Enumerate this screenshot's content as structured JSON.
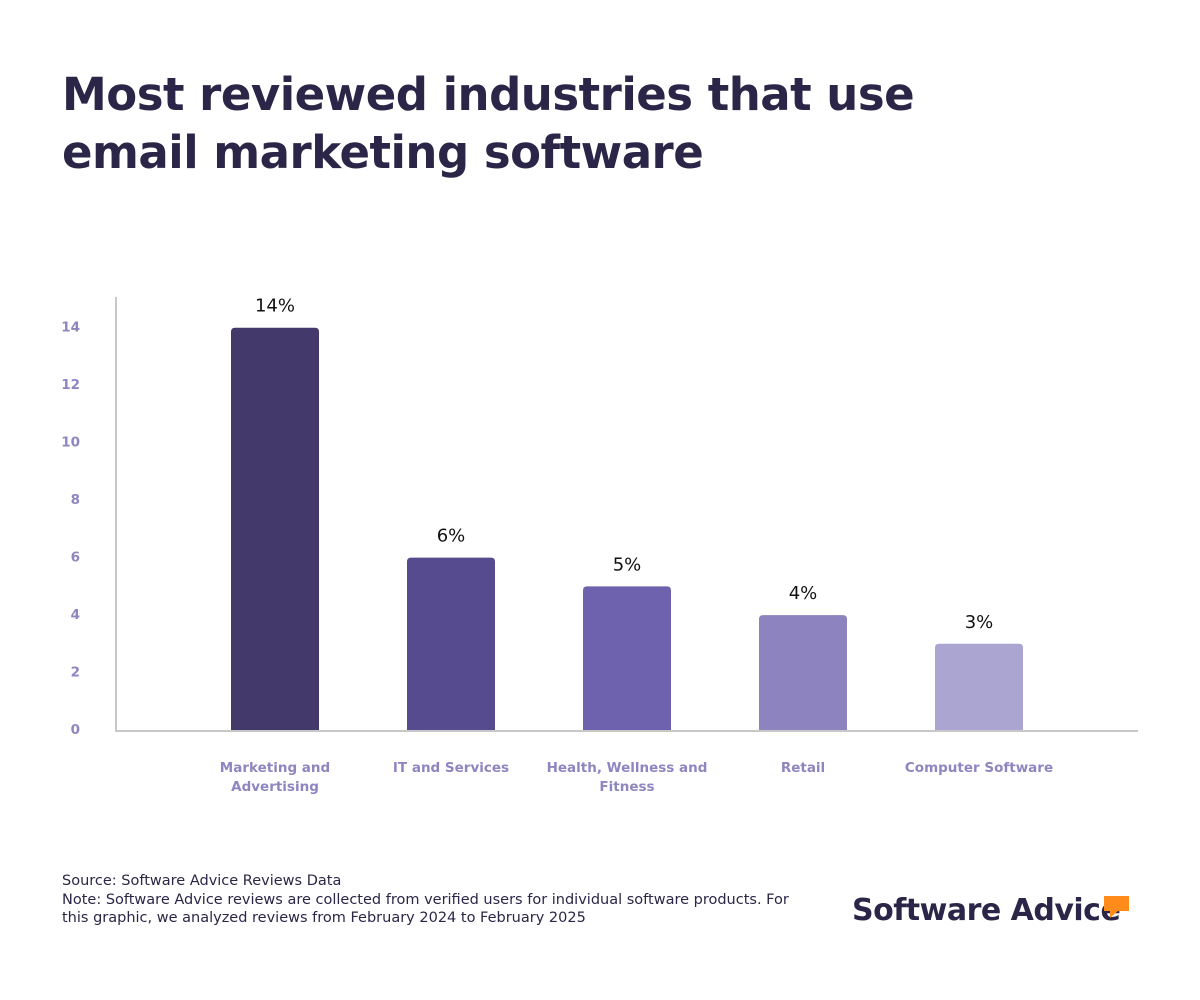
{
  "chart_data": {
    "type": "bar",
    "title": "Most reviewed industries that use email marketing software",
    "categories": [
      "Marketing and Advertising",
      "IT and Services",
      "Health, Wellness and Fitness",
      "Retail",
      "Computer Software"
    ],
    "values": [
      14,
      6,
      5,
      4,
      3
    ],
    "value_labels": [
      "14%",
      "6%",
      "5%",
      "4%",
      "3%"
    ],
    "colors": [
      "#433a6b",
      "#574b8f",
      "#6e62ae",
      "#8d84bf",
      "#aba5d1"
    ],
    "ylim": [
      0,
      15
    ],
    "yticks": [
      0,
      2,
      4,
      6,
      8,
      10,
      12,
      14
    ],
    "grid": false
  },
  "footer": {
    "source": "Source: Software Advice Reviews Data",
    "note": "Note: Software Advice reviews are collected from verified users for individual software products. For this graphic, we analyzed reviews from February 2024 to February 2025",
    "logo": "Software Advice"
  }
}
